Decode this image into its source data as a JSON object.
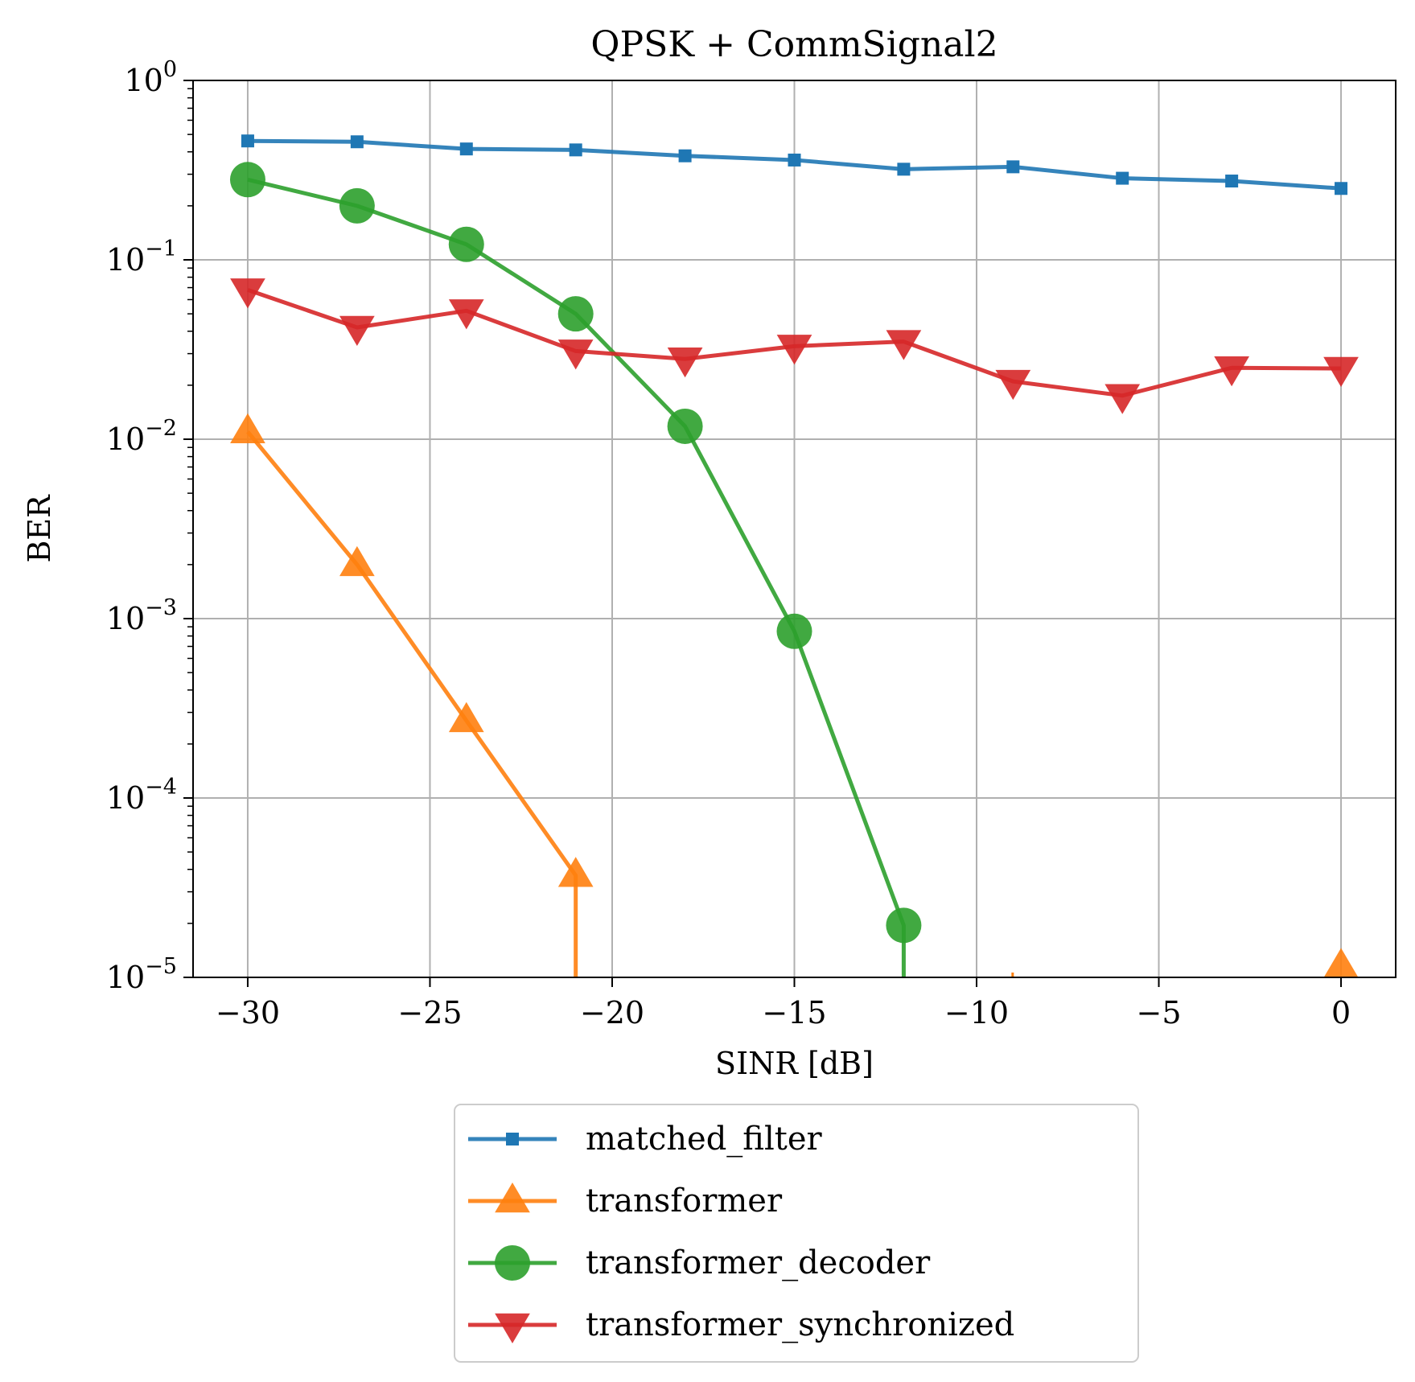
{
  "chart_data": {
    "type": "line",
    "title": "QPSK + CommSignal2",
    "xlabel": "SINR [dB]",
    "ylabel": "BER",
    "xlim": [
      -31.5,
      1.5
    ],
    "ylim": [
      1e-05,
      1
    ],
    "yscale": "log",
    "grid": true,
    "legend_position": "below",
    "x_ticks": [
      -30,
      -25,
      -20,
      -15,
      -10,
      -5,
      0
    ],
    "x_tick_labels": [
      "−30",
      "−25",
      "−20",
      "−15",
      "−10",
      "−5",
      "0"
    ],
    "y_ticks": [
      {
        "base": "10",
        "exp": "0",
        "value": 1
      },
      {
        "base": "10",
        "exp": "−1",
        "value": 0.1
      },
      {
        "base": "10",
        "exp": "−2",
        "value": 0.01
      },
      {
        "base": "10",
        "exp": "−3",
        "value": 0.001
      },
      {
        "base": "10",
        "exp": "−4",
        "value": 0.0001
      },
      {
        "base": "10",
        "exp": "−5",
        "value": 1e-05
      }
    ],
    "series": [
      {
        "name": "matched_filter",
        "color": "#1f77b4",
        "marker": "square",
        "x": [
          -30,
          -27,
          -24,
          -21,
          -18,
          -15,
          -12,
          -9,
          -6,
          -3,
          0
        ],
        "y": [
          0.46,
          0.455,
          0.415,
          0.41,
          0.38,
          0.36,
          0.32,
          0.33,
          0.285,
          0.275,
          0.25
        ]
      },
      {
        "name": "transformer",
        "color": "#ff7f0e",
        "marker": "triangle-up",
        "x": [
          -30,
          -27,
          -24,
          -21
        ],
        "y": [
          0.011,
          0.002,
          0.00027,
          3.7e-05
        ],
        "drop_to_floor": true,
        "floor_points": [
          {
            "x": 0,
            "y": 1.15e-05
          }
        ]
      },
      {
        "name": "transformer_decoder",
        "color": "#2ca02c",
        "marker": "circle",
        "x": [
          -30,
          -27,
          -24,
          -21,
          -18,
          -15,
          -12
        ],
        "y": [
          0.28,
          0.2,
          0.122,
          0.05,
          0.0118,
          0.00085,
          1.95e-05
        ],
        "drop_to_floor": true
      },
      {
        "name": "transformer_synchronized",
        "color": "#d62728",
        "marker": "triangle-down",
        "x": [
          -30,
          -27,
          -24,
          -21,
          -18,
          -15,
          -12,
          -9,
          -6,
          -3,
          0
        ],
        "y": [
          0.068,
          0.042,
          0.052,
          0.031,
          0.028,
          0.033,
          0.035,
          0.021,
          0.0175,
          0.025,
          0.0248
        ]
      }
    ]
  }
}
